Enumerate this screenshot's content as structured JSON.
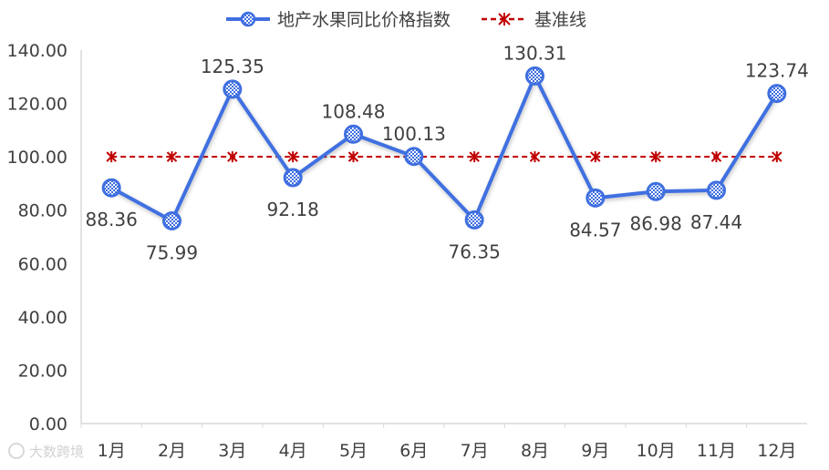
{
  "chart_data": {
    "type": "line",
    "categories": [
      "1月",
      "2月",
      "3月",
      "4月",
      "5月",
      "6月",
      "7月",
      "8月",
      "9月",
      "10月",
      "11月",
      "12月"
    ],
    "series": [
      {
        "name": "地产水果同比价格指数",
        "values": [
          88.36,
          75.99,
          125.35,
          92.18,
          108.48,
          100.13,
          76.35,
          130.31,
          84.57,
          86.98,
          87.44,
          123.74
        ],
        "labels": [
          "88.36",
          "75.99",
          "125.35",
          "92.18",
          "108.48",
          "100.13",
          "76.35",
          "130.31",
          "84.57",
          "86.98",
          "87.44",
          "123.74"
        ],
        "label_positions": [
          "below",
          "below",
          "above",
          "below",
          "above",
          "above",
          "below",
          "above",
          "below",
          "below",
          "below",
          "above"
        ],
        "color": "#3F6FE0",
        "marker": "checker-circle"
      },
      {
        "name": "基准线",
        "values": [
          100,
          100,
          100,
          100,
          100,
          100,
          100,
          100,
          100,
          100,
          100,
          100
        ],
        "color": "#C00000",
        "style": "dashed",
        "marker": "asterisk"
      }
    ],
    "ylim": [
      0,
      140
    ],
    "yticks": [
      "0.00",
      "20.00",
      "40.00",
      "60.00",
      "80.00",
      "100.00",
      "120.00",
      "140.00"
    ],
    "grid": false,
    "legend": "top-center"
  },
  "watermark": "大数跨境",
  "colors": {
    "axis": "#d9d9d9",
    "text": "#404040"
  }
}
